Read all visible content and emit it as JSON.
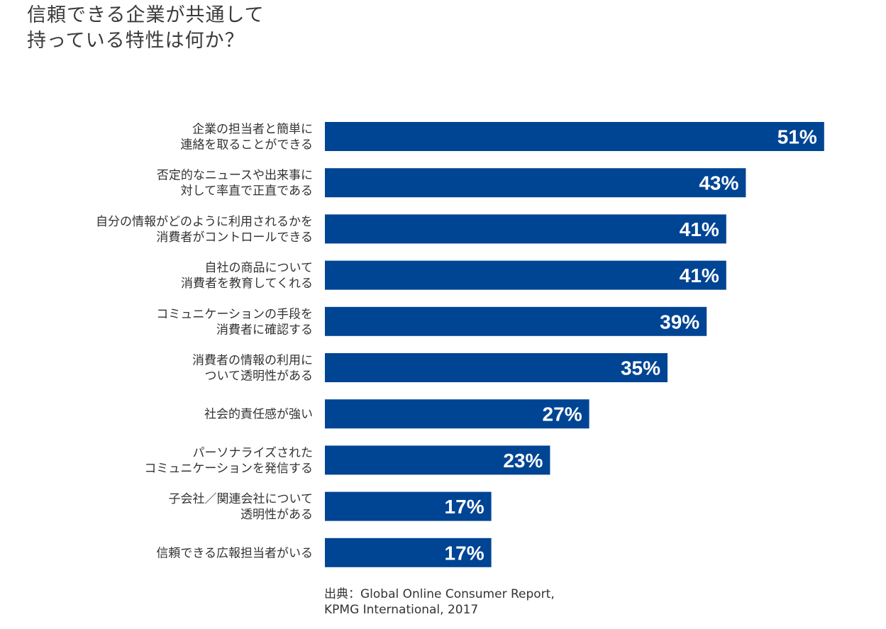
{
  "title": {
    "line1": "信頼できる企業が共通して",
    "line2": "持っている特性は何か？"
  },
  "source": {
    "line1": "出典：Global Online Consumer Report,",
    "line2": "KPMG International, 2017"
  },
  "colors": {
    "bar": "#004494",
    "bar_label": "#ffffff",
    "category_label": "#333333"
  },
  "chart_data": {
    "type": "bar",
    "orientation": "horizontal",
    "categories": [
      [
        "企業の担当者と簡単に",
        "連絡を取ることができる"
      ],
      [
        "否定的なニュースや出来事に",
        "対して率直で正直である"
      ],
      [
        "自分の情報がどのように利用されるかを",
        "消費者がコントロールできる"
      ],
      [
        "自社の商品について",
        "消費者を教育してくれる"
      ],
      [
        "コミュニケーションの手段を",
        "消費者に確認する"
      ],
      [
        "消費者の情報の利用に",
        "ついて透明性がある"
      ],
      [
        "社会的責任感が強い"
      ],
      [
        "パーソナライズされた",
        "コミュニケーションを発信する"
      ],
      [
        "子会社／関連会社について",
        "透明性がある"
      ],
      [
        "信頼できる広報担当者がいる"
      ]
    ],
    "values": [
      51,
      43,
      41,
      41,
      39,
      35,
      27,
      23,
      17,
      17
    ],
    "value_labels": [
      "51%",
      "43%",
      "41%",
      "41%",
      "39%",
      "35%",
      "27%",
      "23%",
      "17%",
      "17%"
    ],
    "unit": "%",
    "grid": false,
    "legend": "none"
  }
}
